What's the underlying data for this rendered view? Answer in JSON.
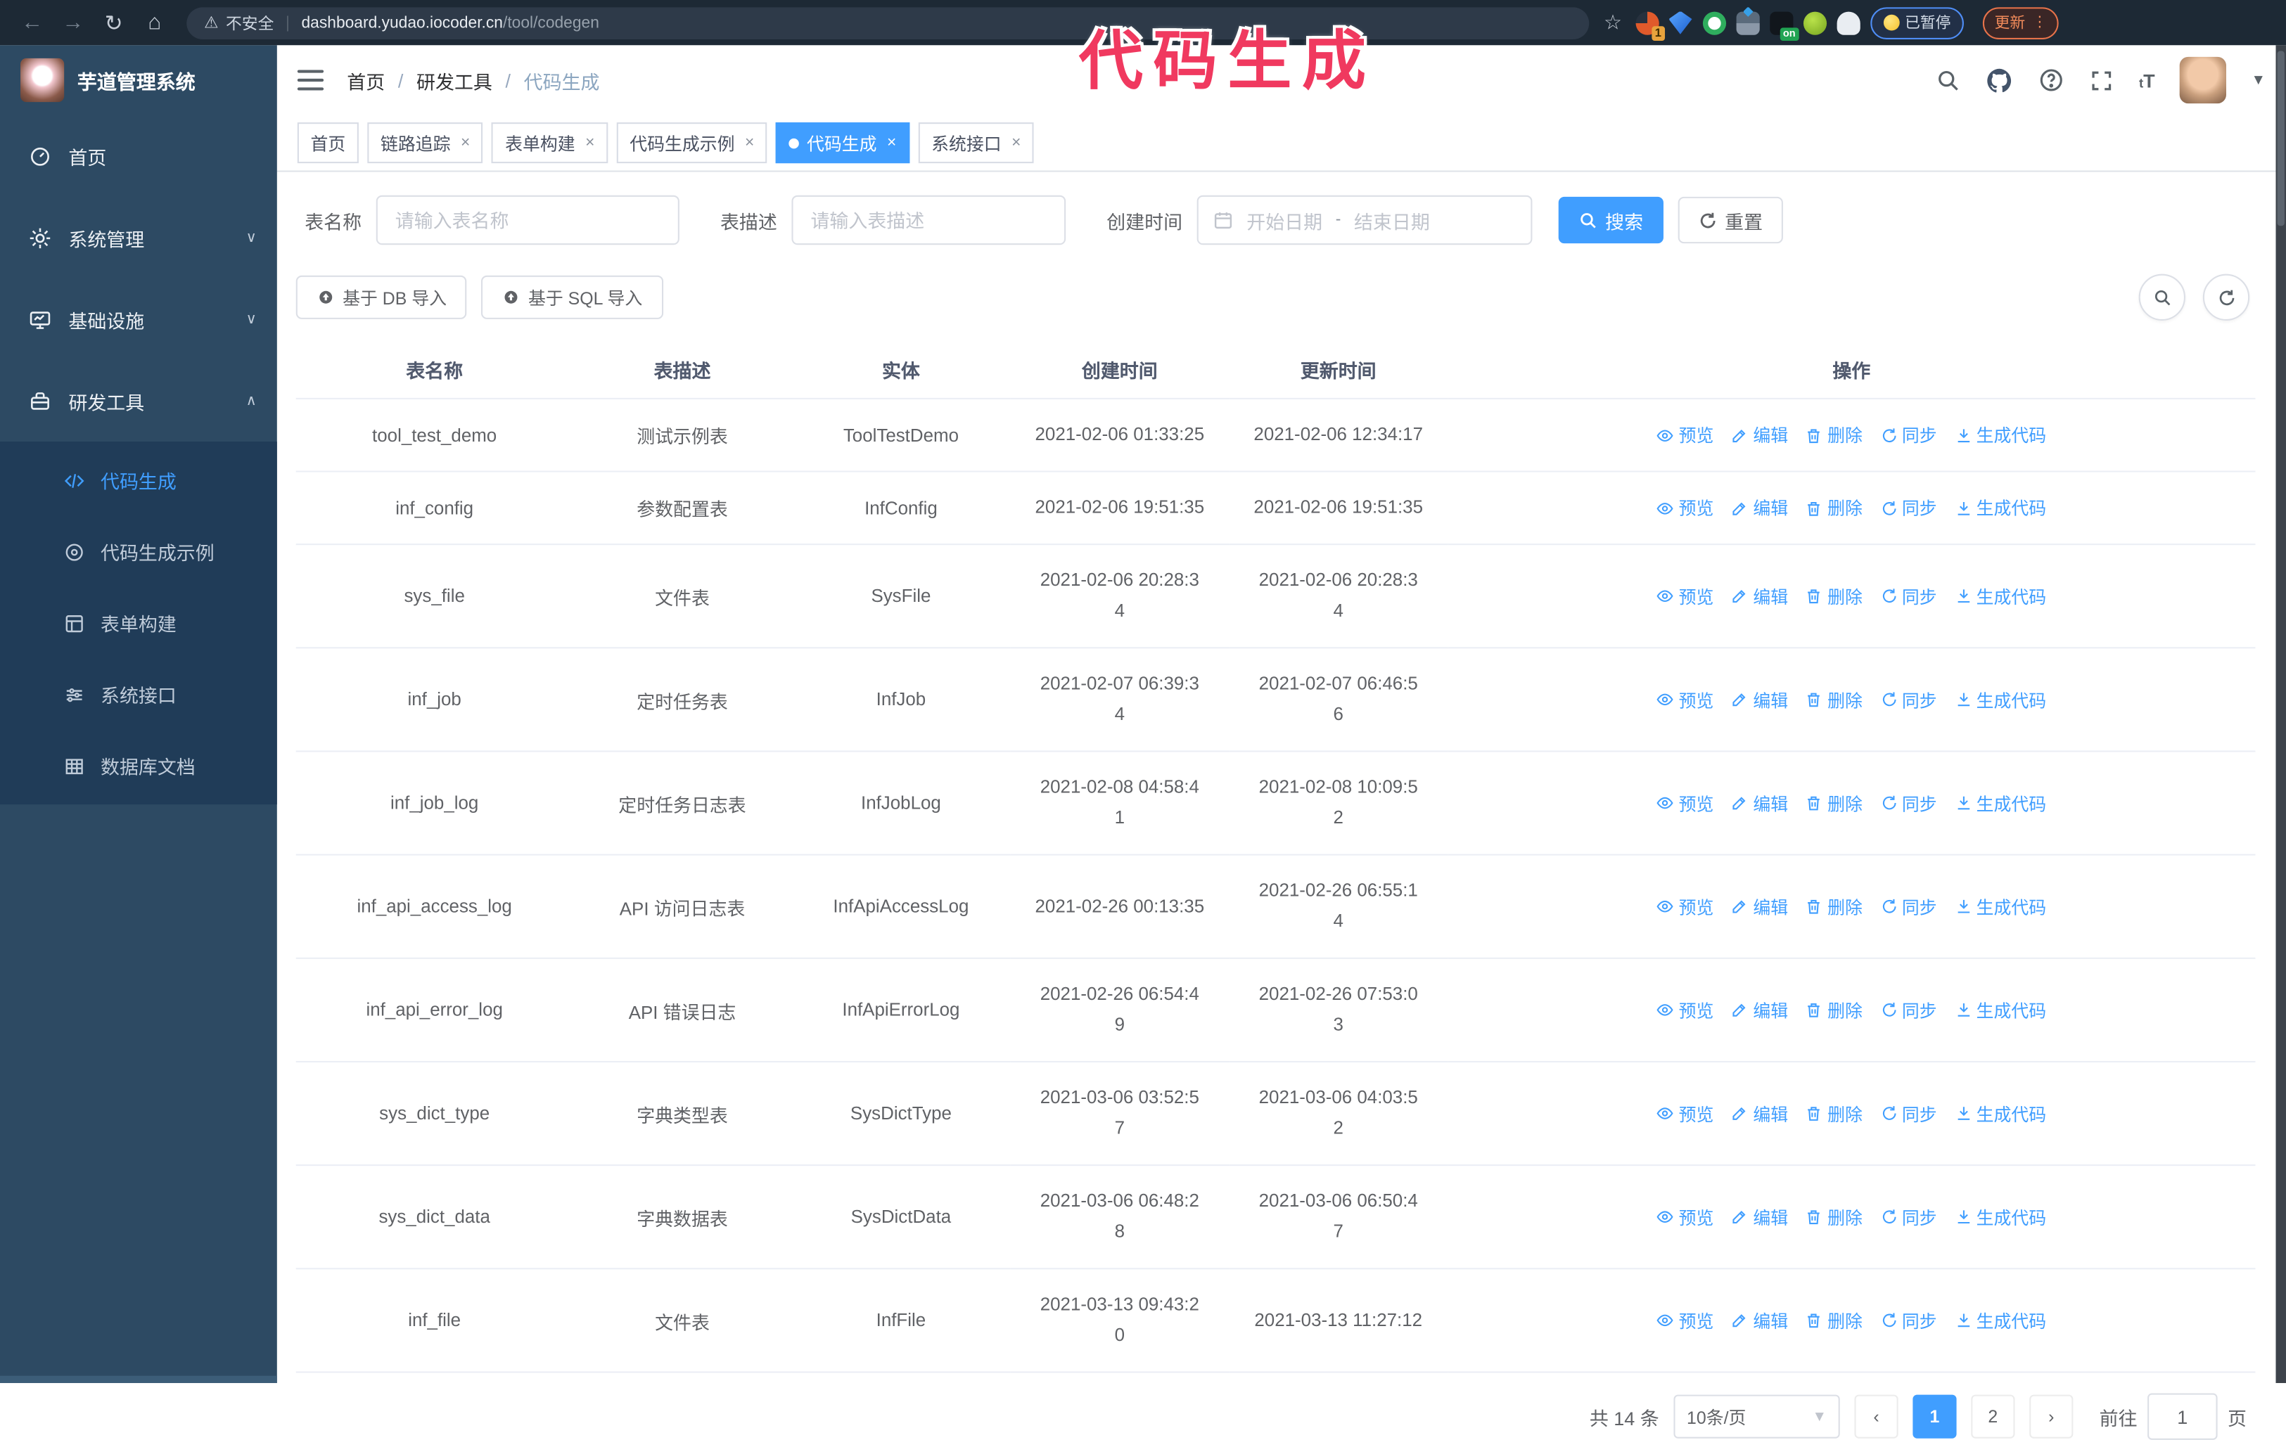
{
  "browser": {
    "security_label": "不安全",
    "url_host": "dashboard.yudao.iocoder.cn",
    "url_path": "/tool/codegen",
    "star_glyph": "☆",
    "ext_badge_count": "1",
    "ext_badge_on": "on",
    "paused_label": "已暂停",
    "update_label": "更新",
    "menu_dots": "⋮",
    "back_glyph": "←",
    "forward_glyph": "→",
    "reload_glyph": "↻",
    "home_glyph": "⌂",
    "warning_glyph": "⚠"
  },
  "watermark": "代码生成",
  "sidebar": {
    "logo_title": "芋道管理系统",
    "items": [
      {
        "label": "首页"
      },
      {
        "label": "系统管理",
        "chevron": "∨"
      },
      {
        "label": "基础设施",
        "chevron": "∨"
      },
      {
        "label": "研发工具",
        "chevron": "∧"
      }
    ],
    "submenu": [
      {
        "label": "代码生成",
        "active": true
      },
      {
        "label": "代码生成示例"
      },
      {
        "label": "表单构建"
      },
      {
        "label": "系统接口"
      },
      {
        "label": "数据库文档"
      }
    ]
  },
  "breadcrumb": {
    "items": [
      "首页",
      "研发工具",
      "代码生成"
    ],
    "separator": "/"
  },
  "tabs": [
    {
      "label": "首页"
    },
    {
      "label": "链路追踪"
    },
    {
      "label": "表单构建"
    },
    {
      "label": "代码生成示例"
    },
    {
      "label": "代码生成"
    },
    {
      "label": "系统接口"
    }
  ],
  "search": {
    "name_label": "表名称",
    "name_placeholder": "请输入表名称",
    "desc_label": "表描述",
    "desc_placeholder": "请输入表描述",
    "time_label": "创建时间",
    "start_placeholder": "开始日期",
    "range_separator": "-",
    "end_placeholder": "结束日期",
    "search_button": "搜索",
    "reset_button": "重置"
  },
  "toolbar": {
    "import_db_label": "基于 DB 导入",
    "import_sql_label": "基于 SQL 导入"
  },
  "table": {
    "columns": [
      "表名称",
      "表描述",
      "实体",
      "创建时间",
      "更新时间",
      "操作"
    ],
    "action_labels": [
      "预览",
      "编辑",
      "删除",
      "同步",
      "生成代码"
    ],
    "rows": [
      {
        "name": "tool_test_demo",
        "desc": "测试示例表",
        "entity": "ToolTestDemo",
        "created": [
          "2021-02-06 01:33:25"
        ],
        "updated": [
          "2021-02-06 12:34:17"
        ]
      },
      {
        "name": "inf_config",
        "desc": "参数配置表",
        "entity": "InfConfig",
        "created": [
          "2021-02-06 19:51:35"
        ],
        "updated": [
          "2021-02-06 19:51:35"
        ]
      },
      {
        "name": "sys_file",
        "desc": "文件表",
        "entity": "SysFile",
        "created": [
          "2021-02-06 20:28:3",
          "4"
        ],
        "updated": [
          "2021-02-06 20:28:3",
          "4"
        ]
      },
      {
        "name": "inf_job",
        "desc": "定时任务表",
        "entity": "InfJob",
        "created": [
          "2021-02-07 06:39:3",
          "4"
        ],
        "updated": [
          "2021-02-07 06:46:5",
          "6"
        ]
      },
      {
        "name": "inf_job_log",
        "desc": "定时任务日志表",
        "entity": "InfJobLog",
        "created": [
          "2021-02-08 04:58:4",
          "1"
        ],
        "updated": [
          "2021-02-08 10:09:5",
          "2"
        ]
      },
      {
        "name": "inf_api_access_log",
        "desc": "API 访问日志表",
        "entity": "InfApiAccessLog",
        "created": [
          "2021-02-26 00:13:35"
        ],
        "updated": [
          "2021-02-26 06:55:1",
          "4"
        ]
      },
      {
        "name": "inf_api_error_log",
        "desc": "API 错误日志",
        "entity": "InfApiErrorLog",
        "created": [
          "2021-02-26 06:54:4",
          "9"
        ],
        "updated": [
          "2021-02-26 07:53:0",
          "3"
        ]
      },
      {
        "name": "sys_dict_type",
        "desc": "字典类型表",
        "entity": "SysDictType",
        "created": [
          "2021-03-06 03:52:5",
          "7"
        ],
        "updated": [
          "2021-03-06 04:03:5",
          "2"
        ]
      },
      {
        "name": "sys_dict_data",
        "desc": "字典数据表",
        "entity": "SysDictData",
        "created": [
          "2021-03-06 06:48:2",
          "8"
        ],
        "updated": [
          "2021-03-06 06:50:4",
          "7"
        ]
      },
      {
        "name": "inf_file",
        "desc": "文件表",
        "entity": "InfFile",
        "created": [
          "2021-03-13 09:43:2",
          "0"
        ],
        "updated": [
          "2021-03-13 11:27:12"
        ]
      }
    ]
  },
  "pagination": {
    "total_label": "共 14 条",
    "page_size_label": "10条/页",
    "prev_glyph": "‹",
    "next_glyph": "›",
    "page_1": "1",
    "page_2": "2",
    "goto_label": "前往",
    "goto_value": "1",
    "page_unit": "页"
  },
  "colors": {
    "accent": "#409eff",
    "watermark_pink": "#f0395f",
    "sidebar_bg": "#2d4a63",
    "submenu_bg": "#203c58",
    "chrome_bg": "#1d2935"
  }
}
